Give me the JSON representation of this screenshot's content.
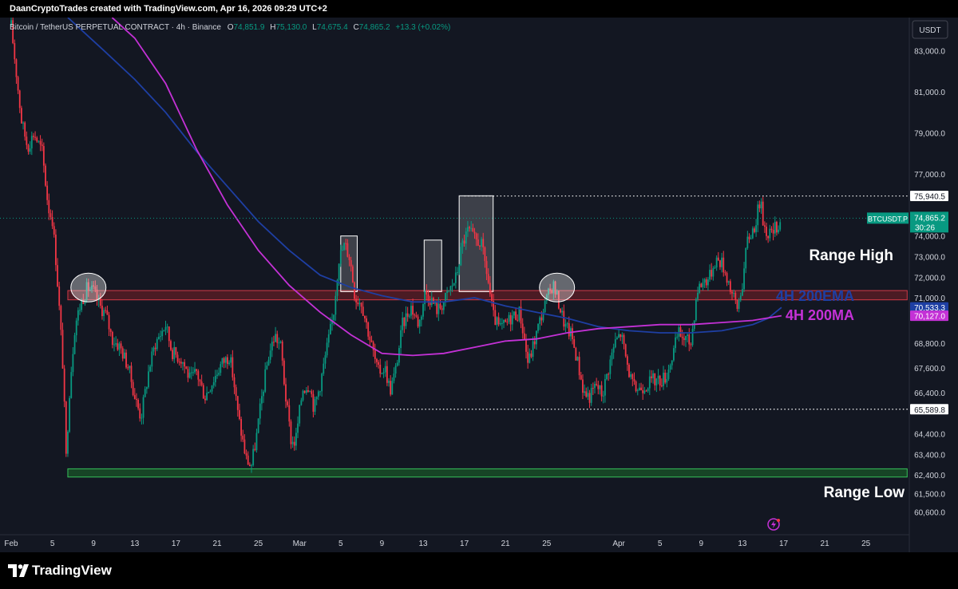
{
  "header": {
    "attribution": "DaanCryptoTrades created with TradingView.com, Apr 16, 2026 09:29 UTC+2"
  },
  "footer": {
    "brand": "TradingView"
  },
  "symbol_info": {
    "name": "Bitcoin / TetherUS PERPETUAL CONTRACT · 4h · Binance",
    "o_label": "O",
    "o": "74,851.9",
    "h_label": "H",
    "h": "75,130.0",
    "l_label": "L",
    "l": "74,675.4",
    "c_label": "C",
    "c": "74,865.2",
    "change": "+13.3 (+0.02%)"
  },
  "currency_button": "USDT",
  "colors": {
    "background": "#131722",
    "up": "#089981",
    "down": "#f23645",
    "ema": "#1e3fa3",
    "ma": "#c431d6",
    "price_label": "#089981",
    "resistance_zone": "#7a1f27",
    "support_zone": "#1c6b2a"
  },
  "chart_data": {
    "type": "candlestick",
    "interval": "4h",
    "ylim": [
      59500,
      84600
    ],
    "x_axis_ticks": [
      {
        "label": "Feb",
        "day": 1
      },
      {
        "label": "5",
        "day": 5
      },
      {
        "label": "9",
        "day": 9
      },
      {
        "label": "13",
        "day": 13
      },
      {
        "label": "17",
        "day": 17
      },
      {
        "label": "21",
        "day": 21
      },
      {
        "label": "25",
        "day": 25
      },
      {
        "label": "Mar",
        "day": 29
      },
      {
        "label": "5",
        "day": 33
      },
      {
        "label": "9",
        "day": 37
      },
      {
        "label": "13",
        "day": 41
      },
      {
        "label": "17",
        "day": 45
      },
      {
        "label": "21",
        "day": 49
      },
      {
        "label": "25",
        "day": 53
      },
      {
        "label": "Apr",
        "day": 60
      },
      {
        "label": "5",
        "day": 64
      },
      {
        "label": "9",
        "day": 68
      },
      {
        "label": "13",
        "day": 72
      },
      {
        "label": "17",
        "day": 76
      },
      {
        "label": "21",
        "day": 80
      },
      {
        "label": "25",
        "day": 84
      }
    ],
    "y_axis_ticks": [
      "83,000.0",
      "81,000.0",
      "79,000.0",
      "77,000.0",
      "74,000.0",
      "73,000.0",
      "72,000.0",
      "71,000.0",
      "68,800.0",
      "67,600.0",
      "66,400.0",
      "64,400.0",
      "63,400.0",
      "62,400.0",
      "61,500.0",
      "60,600.0"
    ],
    "y_axis_values": [
      83000,
      81000,
      79000,
      77000,
      74000,
      73000,
      72000,
      71000,
      68800,
      67600,
      66400,
      64400,
      63400,
      62400,
      61500,
      60600
    ],
    "price_path": [
      [
        1,
        84200
      ],
      [
        2,
        79600
      ],
      [
        2.6,
        78300
      ],
      [
        3.2,
        79000
      ],
      [
        4,
        78100
      ],
      [
        4.6,
        75400
      ],
      [
        5,
        74800
      ],
      [
        5.4,
        72500
      ],
      [
        5.8,
        69500
      ],
      [
        6.1,
        67000
      ],
      [
        6.3,
        62900
      ],
      [
        6.7,
        66800
      ],
      [
        7.2,
        69700
      ],
      [
        7.8,
        70800
      ],
      [
        8.4,
        71500
      ],
      [
        9,
        71300
      ],
      [
        9.6,
        70600
      ],
      [
        10.2,
        70200
      ],
      [
        10.8,
        69000
      ],
      [
        11.6,
        68600
      ],
      [
        12.4,
        67600
      ],
      [
        13,
        66200
      ],
      [
        13.6,
        65200
      ],
      [
        14.4,
        67600
      ],
      [
        15,
        68800
      ],
      [
        16,
        69700
      ],
      [
        16.6,
        68400
      ],
      [
        17.6,
        68000
      ],
      [
        18.4,
        67000
      ],
      [
        19,
        67400
      ],
      [
        19.8,
        66200
      ],
      [
        20.6,
        67000
      ],
      [
        21.4,
        67800
      ],
      [
        22.2,
        68200
      ],
      [
        22.6,
        67000
      ],
      [
        23,
        65400
      ],
      [
        23.8,
        63200
      ],
      [
        24.3,
        62800
      ],
      [
        24.8,
        64200
      ],
      [
        25.4,
        66400
      ],
      [
        26,
        68200
      ],
      [
        26.6,
        69200
      ],
      [
        27.2,
        68600
      ],
      [
        27.6,
        66400
      ],
      [
        28.2,
        64000
      ],
      [
        28.6,
        64000
      ],
      [
        29.3,
        66600
      ],
      [
        30,
        66800
      ],
      [
        30.4,
        65600
      ],
      [
        31,
        66800
      ],
      [
        31.6,
        68400
      ],
      [
        32.3,
        70200
      ],
      [
        32.8,
        72900
      ],
      [
        33.4,
        73600
      ],
      [
        33.9,
        72900
      ],
      [
        34.4,
        71000
      ],
      [
        35,
        70800
      ],
      [
        35.8,
        69100
      ],
      [
        36.6,
        67400
      ],
      [
        37.3,
        67600
      ],
      [
        37.8,
        66500
      ],
      [
        38.3,
        67400
      ],
      [
        39,
        69700
      ],
      [
        39.8,
        70600
      ],
      [
        40.6,
        69700
      ],
      [
        41.2,
        71300
      ],
      [
        41.8,
        70900
      ],
      [
        42.4,
        70400
      ],
      [
        43,
        70800
      ],
      [
        43.6,
        71400
      ],
      [
        44.2,
        72000
      ],
      [
        44.8,
        73600
      ],
      [
        45.4,
        74300
      ],
      [
        46,
        73800
      ],
      [
        46.6,
        73700
      ],
      [
        47.2,
        72200
      ],
      [
        47.8,
        70100
      ],
      [
        48.4,
        69500
      ],
      [
        49,
        69700
      ],
      [
        49.6,
        70100
      ],
      [
        50.4,
        70300
      ],
      [
        51.2,
        67800
      ],
      [
        51.8,
        68900
      ],
      [
        52.4,
        70000
      ],
      [
        53,
        70900
      ],
      [
        53.6,
        71700
      ],
      [
        54.2,
        70700
      ],
      [
        54.8,
        69600
      ],
      [
        55.4,
        69200
      ],
      [
        56,
        67900
      ],
      [
        56.6,
        66400
      ],
      [
        57.2,
        66200
      ],
      [
        57.8,
        66800
      ],
      [
        58.4,
        66300
      ],
      [
        59,
        67600
      ],
      [
        59.6,
        68800
      ],
      [
        60.2,
        69300
      ],
      [
        60.8,
        67800
      ],
      [
        61.4,
        66600
      ],
      [
        62,
        66600
      ],
      [
        62.6,
        66800
      ],
      [
        63.3,
        67000
      ],
      [
        64,
        67000
      ],
      [
        64.6,
        67200
      ],
      [
        65.2,
        68200
      ],
      [
        65.8,
        69300
      ],
      [
        66.4,
        69000
      ],
      [
        67,
        68800
      ],
      [
        67.6,
        71400
      ],
      [
        68.2,
        71800
      ],
      [
        68.8,
        72000
      ],
      [
        69.4,
        72900
      ],
      [
        70,
        72700
      ],
      [
        70.6,
        71900
      ],
      [
        71,
        71200
      ],
      [
        71.5,
        70500
      ],
      [
        72,
        71700
      ],
      [
        72.5,
        73800
      ],
      [
        73.2,
        74500
      ],
      [
        73.7,
        75700
      ],
      [
        74.2,
        74300
      ],
      [
        74.8,
        74100
      ],
      [
        75.4,
        74500
      ],
      [
        75.8,
        74865
      ]
    ],
    "ema_200": {
      "label": "4H 200EMA",
      "current": 70533.3,
      "points": [
        [
          6.5,
          84600
        ],
        [
          10,
          83000
        ],
        [
          13,
          81600
        ],
        [
          16,
          80000
        ],
        [
          19,
          78100
        ],
        [
          22,
          76400
        ],
        [
          25,
          74700
        ],
        [
          28,
          73300
        ],
        [
          31,
          72100
        ],
        [
          34,
          71500
        ],
        [
          37,
          71100
        ],
        [
          40,
          70800
        ],
        [
          43,
          70800
        ],
        [
          46,
          71000
        ],
        [
          49,
          70600
        ],
        [
          52,
          70300
        ],
        [
          55,
          70000
        ],
        [
          58,
          69600
        ],
        [
          61,
          69400
        ],
        [
          64,
          69300
        ],
        [
          67,
          69300
        ],
        [
          70,
          69400
        ],
        [
          73,
          69700
        ],
        [
          74.5,
          70000
        ],
        [
          75.8,
          70533
        ]
      ]
    },
    "ma_200": {
      "label": "4H 200MA",
      "current": 70127.0,
      "points": [
        [
          10.8,
          84600
        ],
        [
          13,
          83600
        ],
        [
          16,
          81400
        ],
        [
          19,
          78200
        ],
        [
          22,
          75500
        ],
        [
          25,
          73300
        ],
        [
          28,
          71600
        ],
        [
          31,
          70300
        ],
        [
          34,
          69200
        ],
        [
          37,
          68300
        ],
        [
          40,
          68200
        ],
        [
          43,
          68300
        ],
        [
          46,
          68600
        ],
        [
          49,
          68900
        ],
        [
          52,
          69000
        ],
        [
          55,
          69300
        ],
        [
          58,
          69500
        ],
        [
          61,
          69600
        ],
        [
          64,
          69700
        ],
        [
          67,
          69700
        ],
        [
          70,
          69800
        ],
        [
          73,
          69900
        ],
        [
          75.8,
          70127
        ]
      ]
    },
    "zones": [
      {
        "type": "resistance",
        "low": 70900,
        "high": 71350,
        "from_day": 6.5,
        "to_day": 88
      },
      {
        "type": "support",
        "low": 62300,
        "high": 62700,
        "from_day": 6.5,
        "to_day": 88
      }
    ],
    "dotted_levels": [
      {
        "label": "75,940.5",
        "price": 75940.5,
        "from_day": 45
      },
      {
        "label": "65,589.8",
        "price": 65589.8,
        "from_day": 37
      }
    ],
    "highlight_boxes": [
      {
        "from_day": 33.0,
        "to_day": 34.6,
        "low": 71300,
        "high": 74000
      },
      {
        "from_day": 41.1,
        "to_day": 42.8,
        "low": 71300,
        "high": 73800
      },
      {
        "from_day": 44.5,
        "to_day": 47.8,
        "low": 71300,
        "high": 75950
      }
    ],
    "highlight_ellipses": [
      {
        "center_day": 8.5,
        "price": 71500
      },
      {
        "center_day": 54.0,
        "price": 71500
      }
    ],
    "annotations": [
      {
        "text": "Range High"
      },
      {
        "text": "Range Low"
      },
      {
        "text": "4H 200EMA"
      },
      {
        "text": "4H 200MA"
      }
    ],
    "current_price": {
      "ticker": "BTCUSDT.P",
      "price": "74,865.2",
      "countdown": "30:26",
      "value": 74865.2
    },
    "ema_label": "70,533.3",
    "ma_label": "70,127.0",
    "grid": false
  }
}
